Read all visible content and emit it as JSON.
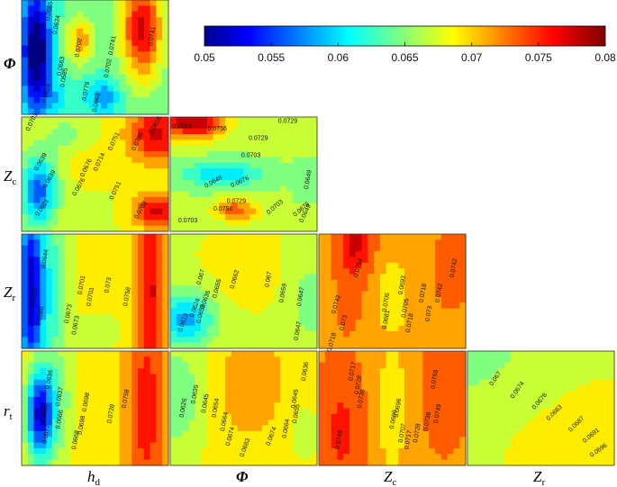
{
  "chart_data": {
    "type": "heatmap",
    "title": "",
    "colorbar": {
      "min": 0.05,
      "max": 0.08,
      "ticks": [
        "0.05",
        "0.055",
        "0.06",
        "0.065",
        "0.07",
        "0.075",
        "0.08"
      ],
      "colormap": "jet"
    },
    "axis_labels": {
      "rows": [
        {
          "key": "phi",
          "main": "Φ",
          "sub": ""
        },
        {
          "key": "zc",
          "main": "Z",
          "sub": "c"
        },
        {
          "key": "zr",
          "main": "Z",
          "sub": "r"
        },
        {
          "key": "rt",
          "main": "r",
          "sub": "t"
        }
      ],
      "cols": [
        {
          "key": "hd",
          "main": "h",
          "sub": "d"
        },
        {
          "key": "phi",
          "main": "Φ",
          "sub": ""
        },
        {
          "key": "zc",
          "main": "Z",
          "sub": "c"
        },
        {
          "key": "zr",
          "main": "Z",
          "sub": "r"
        }
      ]
    },
    "panels": [
      {
        "id": "phi-hd",
        "row": 0,
        "col": 0,
        "contour_labels": [
          "0.0624",
          "0.0663",
          "0.0702",
          "0.0702",
          "0.0741",
          "0.0741",
          "0.0779",
          "0.0663",
          "0.0624",
          "0.0585",
          "0.0585"
        ]
      },
      {
        "id": "zc-hd",
        "row": 1,
        "col": 0,
        "contour_labels": [
          "0.0701",
          "0.0639",
          "0.0676",
          "0.0714",
          "0.0751",
          "0.0788",
          "0.0676",
          "0.0639",
          "0.0601",
          "0.0751",
          "0.0788",
          "0.0826"
        ]
      },
      {
        "id": "zc-phi",
        "row": 1,
        "col": 1,
        "contour_labels": [
          "0.0729",
          "0.0756",
          "0.0729",
          "0.0703",
          "0.0649",
          "0.0676",
          "0.0649",
          "0.0729",
          "0.0756",
          "0.0703",
          "0.0676",
          "0.0649",
          "0.0703",
          "0.0783"
        ]
      },
      {
        "id": "zr-hd",
        "row": 2,
        "col": 0,
        "contour_labels": [
          "0.0644",
          "0.0616",
          "0.0588",
          "0.0673",
          "0.0701",
          "0.0673",
          "0.0701",
          "0.073",
          "0.0758"
        ]
      },
      {
        "id": "zr-phi",
        "row": 2,
        "col": 1,
        "contour_labels": [
          "0.0662",
          "0.067",
          "0.0659",
          "0.0655",
          "0.0647",
          "0.067",
          "0.0659",
          "0.0647",
          "0.0613",
          "0.0624",
          "0.0636"
        ]
      },
      {
        "id": "zr-zc",
        "row": 2,
        "col": 2,
        "contour_labels": [
          "0.0754",
          "0.0742",
          "0.073",
          "0.0718",
          "0.0693",
          "0.0705",
          "0.0718",
          "0.073",
          "0.0742",
          "0.0742",
          "0.0681",
          "0.0705",
          "0.0718"
        ]
      },
      {
        "id": "rt-hd",
        "row": 3,
        "col": 0,
        "contour_labels": [
          "0.0636",
          "0.0637",
          "0.0666",
          "0.0668",
          "0.0698",
          "0.0698",
          "0.0728",
          "0.0758",
          "0.0606",
          "0.0577"
        ]
      },
      {
        "id": "rt-phi",
        "row": 3,
        "col": 1,
        "contour_labels": [
          "0.0626",
          "0.0635",
          "0.0645",
          "0.0654",
          "0.0664",
          "0.0674",
          "0.0683",
          "0.0674",
          "0.0664",
          "0.0655",
          "0.0645",
          "0.0636"
        ]
      },
      {
        "id": "rt-zc",
        "row": 3,
        "col": 2,
        "contour_labels": [
          "0.0717",
          "0.0728",
          "0.0738",
          "0.0749",
          "0.0696",
          "0.0696",
          "0.0707",
          "0.0717",
          "0.0728",
          "0.0738",
          "0.0749",
          "0.0769"
        ]
      },
      {
        "id": "rt-zr",
        "row": 3,
        "col": 3,
        "contour_labels": [
          "0.067",
          "0.0674",
          "0.0678",
          "0.0683",
          "0.0687",
          "0.0691",
          "0.0696"
        ]
      }
    ]
  }
}
